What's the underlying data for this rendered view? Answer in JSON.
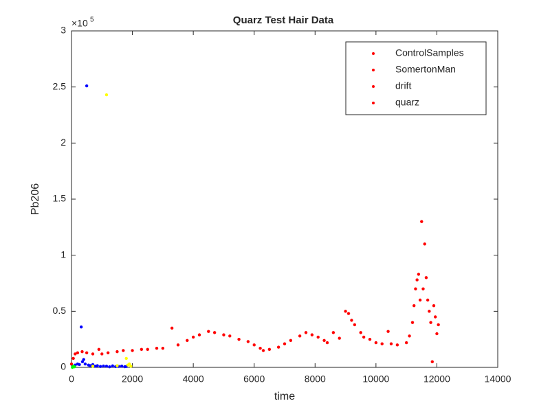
{
  "chart_data": {
    "type": "scatter",
    "title": "Quarz Test Hair Data",
    "x_label": "time",
    "y_label": "Pb206",
    "y_scale_base": "×10",
    "y_scale_exponent": "5",
    "xlim": [
      0,
      14000
    ],
    "ylim": [
      0,
      300000
    ],
    "xticks": [
      0,
      2000,
      4000,
      6000,
      8000,
      10000,
      12000,
      14000
    ],
    "yticks": [
      0,
      {
        "value": 50000,
        "label": "0.5"
      },
      {
        "value": 100000,
        "label": "1"
      },
      {
        "value": 150000,
        "label": "1.5"
      },
      {
        "value": 200000,
        "label": "2"
      },
      {
        "value": 250000,
        "label": "2.5"
      },
      {
        "value": 300000,
        "label": "3"
      }
    ],
    "legend_position": "northeast",
    "legend_marker_color": "#ff0000",
    "series": [
      {
        "name": "ControlSamples",
        "color": "#0000ff",
        "x": [
          50,
          120,
          200,
          260,
          320,
          360,
          400,
          450,
          500,
          560,
          620,
          700,
          780,
          850,
          950,
          1050,
          1150,
          1250,
          1350,
          1450,
          1550,
          1650,
          1750,
          1800
        ],
        "values": [
          1000,
          2000,
          3000,
          2500,
          36000,
          5000,
          7000,
          3000,
          251000,
          2000,
          1500,
          2500,
          1000,
          1500,
          800,
          1200,
          1000,
          500,
          1300,
          700,
          900,
          1100,
          600,
          800
        ]
      },
      {
        "name": "SomertonMan",
        "color": "#ffff00",
        "x": [
          700,
          1150,
          1500,
          1800,
          1850,
          1900,
          1950
        ],
        "values": [
          1000,
          243000,
          1500,
          8000,
          2000,
          3000,
          1000
        ]
      },
      {
        "name": "drift",
        "color": "#ff0000",
        "x": [
          0,
          60,
          120,
          200,
          350,
          500,
          700,
          900,
          1000,
          1200,
          1500,
          1700,
          2000,
          2300,
          2500,
          2800,
          3000,
          3300,
          3500,
          3800,
          4000,
          4200,
          4500,
          4700,
          5000,
          5200,
          5500,
          5800,
          6000,
          6200,
          6300,
          6500,
          6800,
          7000,
          7200,
          7500,
          7700,
          7900,
          8100,
          8300,
          8400,
          8600,
          8800,
          9000,
          9100,
          9200,
          9300,
          9500,
          9600,
          9800,
          10000,
          10200,
          10400,
          10500,
          10700,
          11000,
          11100,
          11200,
          11250,
          11300,
          11350,
          11400,
          11450,
          11500,
          11550,
          11600,
          11650,
          11700,
          11750,
          11800,
          11850,
          11900,
          11950,
          12000,
          12050
        ],
        "values": [
          3000,
          8000,
          12000,
          13000,
          14000,
          13000,
          12000,
          16000,
          12000,
          13000,
          14000,
          15000,
          15000,
          16000,
          16000,
          17000,
          17000,
          35000,
          20000,
          24000,
          27000,
          29000,
          32000,
          31000,
          29000,
          28000,
          25000,
          23000,
          20000,
          17000,
          15000,
          16000,
          18000,
          21000,
          24000,
          28000,
          31000,
          29000,
          27000,
          24000,
          22000,
          31000,
          26000,
          50000,
          48000,
          42000,
          38000,
          31000,
          27000,
          25000,
          22000,
          21000,
          32000,
          21000,
          20000,
          22000,
          28000,
          40000,
          55000,
          70000,
          78000,
          83000,
          60000,
          130000,
          70000,
          110000,
          80000,
          60000,
          50000,
          40000,
          5000,
          55000,
          45000,
          30000,
          38000
        ]
      },
      {
        "name": "quarz",
        "color": "#00ff00",
        "x": [
          30,
          60,
          100
        ],
        "values": [
          0,
          1000,
          500
        ]
      }
    ]
  }
}
